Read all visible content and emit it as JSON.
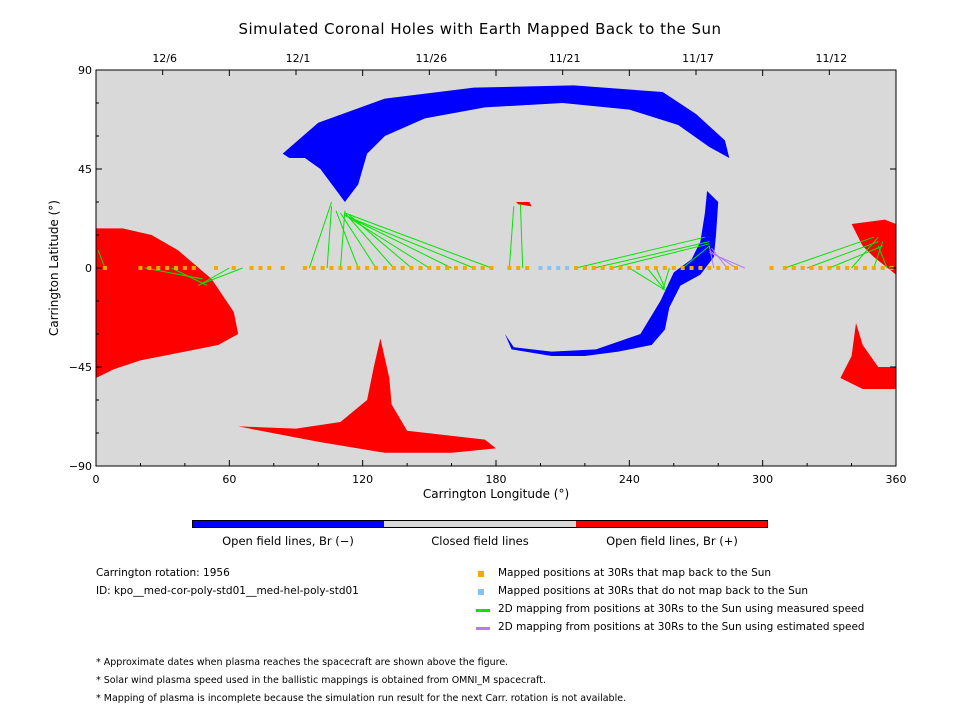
{
  "title": "Simulated Coronal Holes with Earth Mapped Back to the Sun",
  "colors": {
    "open_negative": "#0000ff",
    "closed": "#d9d9d9",
    "open_positive": "#ff0000",
    "mapped": "#f5a800",
    "unmapped": "#87c3f2",
    "measured_line": "#00e600",
    "estimated_line": "#b57af0"
  },
  "colorbar": {
    "neg_label": "Open field lines, Br (−)",
    "closed_label": "Closed field lines",
    "pos_label": "Open field lines, Br (+)"
  },
  "info": {
    "rotation": "Carrington rotation: 1956",
    "id": "ID: kpo__med-cor-poly-std01__med-hel-poly-std01"
  },
  "legend": [
    {
      "label": "Mapped positions at 30Rs that map back to the Sun",
      "symbol": "square",
      "color": "#f5a800"
    },
    {
      "label": "Mapped positions at 30Rs that do not map back to the Sun",
      "symbol": "square",
      "color": "#87c3f2"
    },
    {
      "label": "2D mapping from positions at 30Rs to the Sun using measured speed",
      "symbol": "line",
      "color": "#00e600"
    },
    {
      "label": "2D mapping from positions at 30Rs to the Sun using estimated speed",
      "symbol": "line",
      "color": "#b57af0"
    }
  ],
  "notes": [
    "* Approximate dates when plasma reaches the spacecraft are shown above the figure.",
    "* Solar wind plasma speed used in the ballistic mappings is obtained from OMNI_M spacecraft.",
    "* Mapping of plasma is incomplete because the simulation run result for the next Carr. rotation is not available."
  ],
  "chart_data": {
    "type": "scatter",
    "title": "Simulated Coronal Holes with Earth Mapped Back to the Sun",
    "xlabel": "Carrington Longitude (°)",
    "ylabel": "Carrington Latitude (°)",
    "xlim": [
      0,
      360
    ],
    "ylim": [
      -90,
      90
    ],
    "xticks": [
      0,
      60,
      120,
      180,
      240,
      300,
      360
    ],
    "yticks": [
      -90,
      -45,
      0,
      45,
      90
    ],
    "xtick_labels": [
      "0",
      "60",
      "120",
      "180",
      "240",
      "300",
      "360"
    ],
    "ytick_labels": [
      "−90",
      "−45",
      "0",
      "45",
      "90"
    ],
    "top_axis": {
      "labels": [
        "12/6",
        "12/1",
        "11/26",
        "11/21",
        "11/17",
        "11/12"
      ],
      "positions": [
        30,
        90,
        150,
        210,
        270,
        330
      ]
    },
    "regions": [
      {
        "polarity": "negative",
        "points": [
          [
            84,
            52
          ],
          [
            100,
            66
          ],
          [
            130,
            77
          ],
          [
            170,
            82
          ],
          [
            215,
            83
          ],
          [
            255,
            80
          ],
          [
            270,
            70
          ],
          [
            283,
            58
          ],
          [
            285,
            50
          ],
          [
            276,
            55
          ],
          [
            262,
            65
          ],
          [
            240,
            72
          ],
          [
            210,
            75
          ],
          [
            175,
            73
          ],
          [
            148,
            68
          ],
          [
            130,
            60
          ],
          [
            122,
            52
          ],
          [
            118,
            38
          ],
          [
            112,
            30
          ],
          [
            101,
            45
          ],
          [
            94,
            50
          ],
          [
            87,
            50
          ]
        ]
      },
      {
        "polarity": "negative",
        "points": [
          [
            275,
            35
          ],
          [
            280,
            30
          ],
          [
            279,
            15
          ],
          [
            278,
            5
          ],
          [
            272,
            -3
          ],
          [
            263,
            -8
          ],
          [
            258,
            -18
          ],
          [
            256,
            -28
          ],
          [
            250,
            -35
          ],
          [
            235,
            -38
          ],
          [
            220,
            -40
          ],
          [
            205,
            -40
          ],
          [
            187,
            -37
          ],
          [
            184,
            -30
          ],
          [
            188,
            -36
          ],
          [
            205,
            -38
          ],
          [
            225,
            -37
          ],
          [
            245,
            -30
          ],
          [
            254,
            -15
          ],
          [
            260,
            -2
          ],
          [
            268,
            4
          ],
          [
            272,
            12
          ],
          [
            274,
            25
          ]
        ]
      },
      {
        "polarity": "positive",
        "points": [
          [
            0,
            18
          ],
          [
            12,
            18
          ],
          [
            25,
            15
          ],
          [
            37,
            8
          ],
          [
            52,
            -5
          ],
          [
            62,
            -20
          ],
          [
            64,
            -30
          ],
          [
            55,
            -35
          ],
          [
            40,
            -38
          ],
          [
            20,
            -42
          ],
          [
            8,
            -46
          ],
          [
            0,
            -50
          ]
        ]
      },
      {
        "polarity": "positive",
        "points": [
          [
            128,
            -32
          ],
          [
            132,
            -50
          ],
          [
            133,
            -62
          ],
          [
            140,
            -74
          ],
          [
            175,
            -78
          ],
          [
            180,
            -82
          ],
          [
            160,
            -84
          ],
          [
            130,
            -84
          ],
          [
            100,
            -79
          ],
          [
            64,
            -72
          ],
          [
            90,
            -73
          ],
          [
            110,
            -70
          ],
          [
            122,
            -60
          ],
          [
            125,
            -45
          ]
        ]
      },
      {
        "polarity": "positive",
        "points": [
          [
            340,
            20
          ],
          [
            355,
            22
          ],
          [
            360,
            20
          ],
          [
            360,
            -3
          ],
          [
            350,
            5
          ],
          [
            345,
            10
          ]
        ]
      },
      {
        "polarity": "positive",
        "points": [
          [
            342,
            -25
          ],
          [
            345,
            -35
          ],
          [
            352,
            -45
          ],
          [
            360,
            -45
          ],
          [
            360,
            -55
          ],
          [
            345,
            -55
          ],
          [
            335,
            -50
          ],
          [
            340,
            -40
          ]
        ]
      },
      {
        "polarity": "positive",
        "points": [
          [
            189,
            30
          ],
          [
            195,
            30
          ],
          [
            196,
            28
          ],
          [
            190,
            29
          ]
        ]
      }
    ],
    "mapped_points": [
      [
        4,
        0
      ],
      [
        20,
        0
      ],
      [
        24,
        0
      ],
      [
        28,
        0
      ],
      [
        32,
        0
      ],
      [
        36,
        0
      ],
      [
        40,
        0
      ],
      [
        44,
        0
      ],
      [
        54,
        0
      ],
      [
        62,
        0
      ],
      [
        70,
        0
      ],
      [
        74,
        0
      ],
      [
        78,
        0
      ],
      [
        84,
        0
      ],
      [
        94,
        0
      ],
      [
        98,
        0
      ],
      [
        102,
        0
      ],
      [
        106,
        0
      ],
      [
        110,
        0
      ],
      [
        114,
        0
      ],
      [
        118,
        0
      ],
      [
        122,
        0
      ],
      [
        126,
        0
      ],
      [
        130,
        0
      ],
      [
        134,
        0
      ],
      [
        138,
        0
      ],
      [
        142,
        0
      ],
      [
        146,
        0
      ],
      [
        150,
        0
      ],
      [
        154,
        0
      ],
      [
        158,
        0
      ],
      [
        162,
        0
      ],
      [
        166,
        0
      ],
      [
        170,
        0
      ],
      [
        174,
        0
      ],
      [
        178,
        0
      ],
      [
        186,
        0
      ],
      [
        190,
        0
      ],
      [
        194,
        0
      ],
      [
        216,
        0
      ],
      [
        220,
        0
      ],
      [
        224,
        0
      ],
      [
        228,
        0
      ],
      [
        232,
        0
      ],
      [
        236,
        0
      ],
      [
        240,
        0
      ],
      [
        244,
        0
      ],
      [
        248,
        0
      ],
      [
        252,
        0
      ],
      [
        256,
        0
      ],
      [
        260,
        0
      ],
      [
        264,
        0
      ],
      [
        268,
        0
      ],
      [
        272,
        0
      ],
      [
        276,
        0
      ],
      [
        280,
        0
      ],
      [
        284,
        0
      ],
      [
        288,
        0
      ],
      [
        304,
        0
      ],
      [
        310,
        0
      ],
      [
        314,
        0
      ],
      [
        318,
        0
      ],
      [
        322,
        0
      ],
      [
        326,
        0
      ],
      [
        330,
        0
      ],
      [
        334,
        0
      ],
      [
        338,
        0
      ],
      [
        342,
        0
      ],
      [
        346,
        0
      ],
      [
        350,
        0
      ],
      [
        354,
        0
      ],
      [
        358,
        0
      ]
    ],
    "unmapped_points": [
      [
        200,
        0
      ],
      [
        204,
        0
      ],
      [
        208,
        0
      ],
      [
        212,
        0
      ]
    ],
    "measured_lines": [
      [
        [
          4,
          0
        ],
        [
          1,
          8
        ]
      ],
      [
        [
          22,
          0
        ],
        [
          48,
          -5
        ]
      ],
      [
        [
          34,
          0
        ],
        [
          50,
          -8
        ]
      ],
      [
        [
          60,
          0
        ],
        [
          46,
          -8
        ]
      ],
      [
        [
          66,
          0
        ],
        [
          48,
          -7
        ]
      ],
      [
        [
          96,
          0
        ],
        [
          106,
          30
        ]
      ],
      [
        [
          104,
          0
        ],
        [
          106,
          28
        ]
      ],
      [
        [
          110,
          0
        ],
        [
          112,
          26
        ]
      ],
      [
        [
          118,
          0
        ],
        [
          108,
          26
        ]
      ],
      [
        [
          126,
          0
        ],
        [
          110,
          25
        ]
      ],
      [
        [
          134,
          0
        ],
        [
          112,
          25
        ]
      ],
      [
        [
          142,
          0
        ],
        [
          114,
          24
        ]
      ],
      [
        [
          150,
          0
        ],
        [
          112,
          24
        ]
      ],
      [
        [
          160,
          0
        ],
        [
          114,
          23
        ]
      ],
      [
        [
          170,
          0
        ],
        [
          114,
          23
        ]
      ],
      [
        [
          178,
          0
        ],
        [
          112,
          25
        ]
      ],
      [
        [
          186,
          0
        ],
        [
          188,
          28
        ]
      ],
      [
        [
          192,
          0
        ],
        [
          191,
          29
        ]
      ],
      [
        [
          216,
          0
        ],
        [
          274,
          14
        ]
      ],
      [
        [
          224,
          0
        ],
        [
          276,
          12
        ]
      ],
      [
        [
          232,
          0
        ],
        [
          276,
          11
        ]
      ],
      [
        [
          240,
          0
        ],
        [
          256,
          -10
        ]
      ],
      [
        [
          248,
          0
        ],
        [
          256,
          -10
        ]
      ],
      [
        [
          252,
          0
        ],
        [
          256,
          -9
        ]
      ],
      [
        [
          258,
          0
        ],
        [
          255,
          -10
        ]
      ],
      [
        [
          264,
          0
        ],
        [
          276,
          10
        ]
      ],
      [
        [
          310,
          0
        ],
        [
          350,
          14
        ]
      ],
      [
        [
          320,
          0
        ],
        [
          352,
          12
        ]
      ],
      [
        [
          330,
          0
        ],
        [
          354,
          10
        ]
      ],
      [
        [
          340,
          0
        ],
        [
          352,
          14
        ]
      ],
      [
        [
          350,
          0
        ],
        [
          354,
          12
        ]
      ],
      [
        [
          356,
          0
        ],
        [
          352,
          10
        ]
      ]
    ],
    "estimated_lines": [
      [
        [
          278,
          0
        ],
        [
          276,
          10
        ]
      ],
      [
        [
          284,
          0
        ],
        [
          277,
          9
        ]
      ],
      [
        [
          288,
          0
        ],
        [
          276,
          8
        ]
      ],
      [
        [
          292,
          0
        ],
        [
          276,
          7
        ]
      ]
    ]
  }
}
